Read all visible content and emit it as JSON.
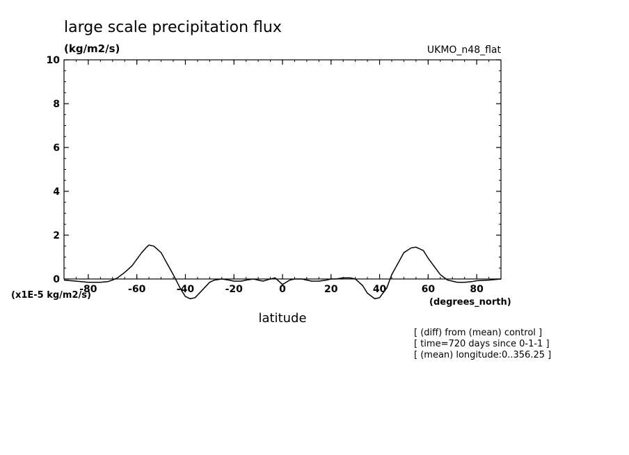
{
  "chart_data": {
    "type": "line",
    "title": "large scale precipitation flux",
    "units": "(kg/m2/s)",
    "model_label": "UKMO_n48_flat",
    "xlabel": "latitude",
    "x_units": "(degrees_north)",
    "y_scale_label": "(x1E-5 kg/m2/s)",
    "xlim": [
      -90,
      90
    ],
    "ylim": [
      0,
      10
    ],
    "x_ticks": [
      -80,
      -60,
      -40,
      -20,
      0,
      20,
      40,
      60,
      80
    ],
    "x_tick_labels": [
      "-80",
      "-60",
      "-40",
      "-20",
      "0",
      "20",
      "40",
      "60",
      "80"
    ],
    "y_ticks": [
      0,
      2,
      4,
      6,
      8,
      10
    ],
    "y_tick_labels": [
      "0",
      "2",
      "4",
      "6",
      "8",
      "10"
    ],
    "notes": [
      "[ (diff) from (mean) control ]",
      "[ time=720 days since 0-1-1 ]",
      "[ (mean) longitude:0..356.25 ]"
    ],
    "series": [
      {
        "x": [
          -90,
          -85,
          -80,
          -75,
          -72,
          -70,
          -68,
          -65,
          -62,
          -60,
          -58,
          -56,
          -55,
          -53,
          -50,
          -48,
          -45,
          -42,
          -40,
          -38,
          -36,
          -33,
          -30,
          -28,
          -25,
          -22,
          -20,
          -17,
          -15,
          -12,
          -10,
          -8,
          -5,
          -3,
          0,
          3,
          5,
          8,
          10,
          12,
          15,
          18,
          20,
          22,
          25,
          28,
          30,
          33,
          35,
          38,
          40,
          43,
          45,
          48,
          50,
          53,
          55,
          58,
          60,
          63,
          65,
          68,
          70,
          72,
          75,
          78,
          80,
          85,
          90
        ],
        "y": [
          -0.05,
          -0.1,
          -0.15,
          -0.15,
          -0.12,
          -0.05,
          0.05,
          0.3,
          0.6,
          0.9,
          1.2,
          1.45,
          1.55,
          1.5,
          1.2,
          0.8,
          0.2,
          -0.45,
          -0.8,
          -0.9,
          -0.85,
          -0.5,
          -0.15,
          -0.05,
          0.0,
          -0.05,
          -0.1,
          -0.1,
          -0.05,
          0.0,
          -0.05,
          -0.1,
          0.0,
          0.05,
          -0.25,
          -0.05,
          0.0,
          0.0,
          -0.05,
          -0.1,
          -0.1,
          -0.05,
          0.0,
          0.0,
          0.05,
          0.05,
          0.0,
          -0.3,
          -0.65,
          -0.9,
          -0.85,
          -0.4,
          0.2,
          0.8,
          1.2,
          1.42,
          1.45,
          1.3,
          0.95,
          0.5,
          0.2,
          -0.05,
          -0.1,
          -0.15,
          -0.15,
          -0.12,
          -0.08,
          -0.05,
          0.0
        ]
      }
    ]
  }
}
